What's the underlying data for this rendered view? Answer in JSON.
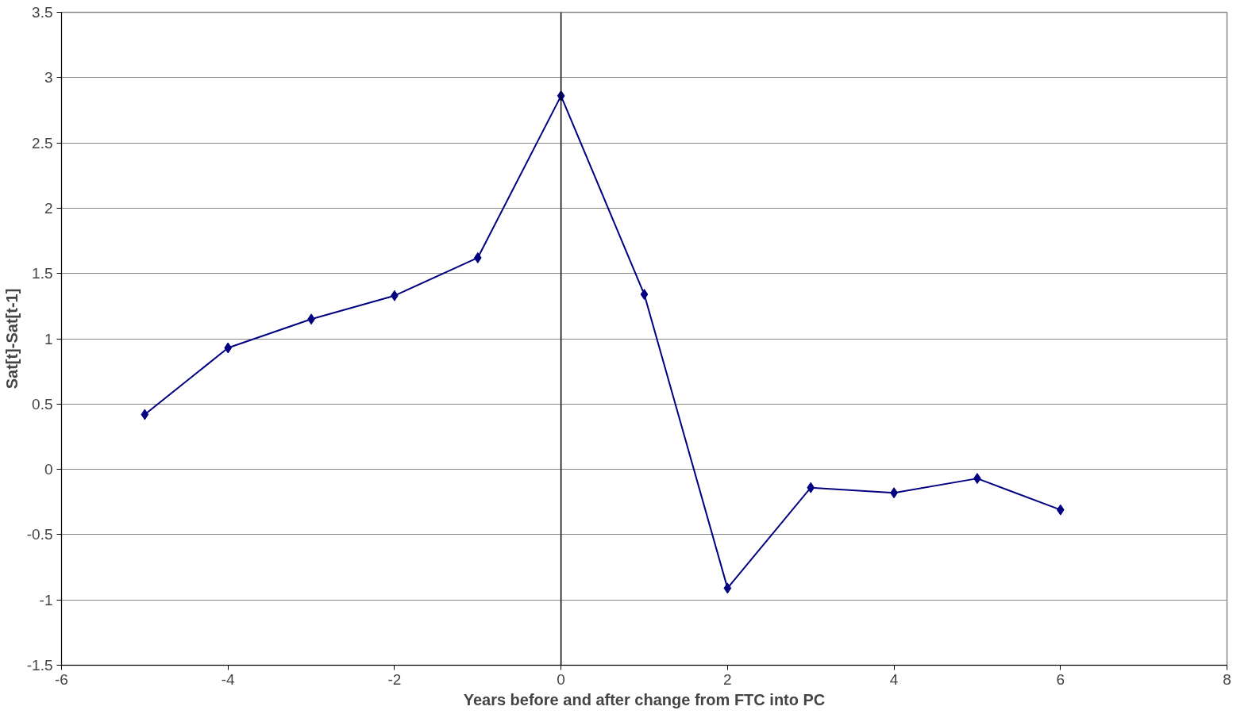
{
  "chart_data": {
    "type": "line",
    "xlabel": "Years before and after change from FTC into PC",
    "ylabel": "Sat[t]-Sat[t-1]",
    "x": [
      -5,
      -4,
      -3,
      -2,
      -1,
      0,
      1,
      2,
      3,
      4,
      5,
      6
    ],
    "series": [
      {
        "color": "#000080",
        "values": [
          0.42,
          0.93,
          1.15,
          1.33,
          1.62,
          2.86,
          1.34,
          -0.91,
          -0.14,
          -0.18,
          -0.07,
          -0.31
        ]
      }
    ],
    "xlim": [
      -6,
      8
    ],
    "xticks": [
      -6,
      -4,
      -2,
      0,
      2,
      4,
      6,
      8
    ],
    "ylim": [
      -1.5,
      3.5
    ],
    "yticks": [
      -1.5,
      -1,
      -0.5,
      0,
      0.5,
      1,
      1.5,
      2,
      2.5,
      3,
      3.5
    ],
    "ref_lines": [
      {
        "axis": "x",
        "value": 0,
        "color": "#000000"
      }
    ],
    "grid": "y",
    "marker": "diamond",
    "line_style": "solid"
  }
}
